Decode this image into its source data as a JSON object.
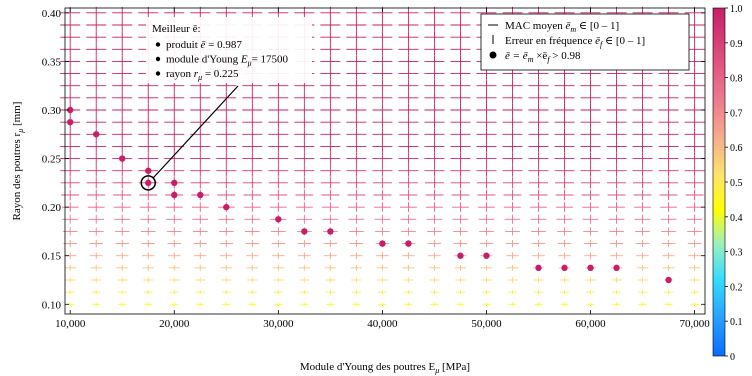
{
  "chart_data": {
    "type": "scatter",
    "title": "",
    "xlabel": "Module d'Young des poutres E",
    "xlabel_sub": "μ",
    "xlabel_unit": " [MPa]",
    "ylabel": "Rayon des poutres r",
    "ylabel_sub": "μ",
    "ylabel_unit": " [mm]",
    "xlim": [
      9500,
      71000
    ],
    "ylim": [
      0.09,
      0.405
    ],
    "x_ticks": [
      10000,
      20000,
      30000,
      40000,
      50000,
      60000,
      70000
    ],
    "x_tick_labels": [
      "10,000",
      "20,000",
      "30,000",
      "40,000",
      "50,000",
      "60,000",
      "70,000"
    ],
    "y_ticks": [
      0.1,
      0.15,
      0.2,
      0.25,
      0.3,
      0.35,
      0.4
    ],
    "y_tick_labels": [
      "0.10",
      "0.15",
      "0.20",
      "0.25",
      "0.30",
      "0.35",
      "0.40"
    ],
    "grid_x": {
      "start": 10000,
      "step": 2500,
      "count": 25
    },
    "grid_y": {
      "start": 0.1,
      "step": 0.0125,
      "count": 25
    },
    "colorbar": {
      "range": [
        0,
        1
      ],
      "ticks": [
        "0",
        "0.1",
        "0.2",
        "0.3",
        "0.4",
        "0.5",
        "0.6",
        "0.7",
        "0.8",
        "0.9",
        "1.0"
      ],
      "colors": [
        "#0a6cff",
        "#27a0ff",
        "#2fd7ff",
        "#8cf2d0",
        "#ffff00",
        "#ffe060",
        "#f7a98a",
        "#ef7f90",
        "#e85b8a",
        "#d93a7a",
        "#c81e6a"
      ]
    },
    "legend": {
      "position": "top-right",
      "entries": [
        {
          "marker": "hline",
          "text": "MAC moyen ",
          "math": "ē",
          "sub": "m",
          "tail": " ∈ [0 – 1]"
        },
        {
          "marker": "vline",
          "text": "Erreur en fréquence ",
          "math": "ē",
          "sub": "f",
          "tail": " ∈ [0 – 1]"
        },
        {
          "marker": "dot",
          "text": "",
          "math": "ē = ē",
          "sub": "m",
          "tail": " ×ē",
          "sub2": "f",
          "tail2": " > 0.98"
        }
      ]
    },
    "best": {
      "x": 17500,
      "y": 0.225,
      "title": "Meilleur ē:",
      "lines": [
        {
          "label": "produit ",
          "math": "ē",
          "value": " = 0.987"
        },
        {
          "label": "module d'Young ",
          "math": "E",
          "sub": "μ",
          "value": "= 17500"
        },
        {
          "label": "rayon ",
          "math": "r",
          "sub": "μ",
          "value": " = 0.225"
        }
      ]
    },
    "highlight_points": [
      {
        "x": 10000,
        "y": 0.3
      },
      {
        "x": 10000,
        "y": 0.2875
      },
      {
        "x": 12500,
        "y": 0.275
      },
      {
        "x": 15000,
        "y": 0.25
      },
      {
        "x": 17500,
        "y": 0.2375
      },
      {
        "x": 17500,
        "y": 0.225
      },
      {
        "x": 20000,
        "y": 0.225
      },
      {
        "x": 20000,
        "y": 0.2125
      },
      {
        "x": 22500,
        "y": 0.2125
      },
      {
        "x": 25000,
        "y": 0.2
      },
      {
        "x": 30000,
        "y": 0.1875
      },
      {
        "x": 32500,
        "y": 0.175
      },
      {
        "x": 35000,
        "y": 0.175
      },
      {
        "x": 40000,
        "y": 0.1625
      },
      {
        "x": 42500,
        "y": 0.1625
      },
      {
        "x": 47500,
        "y": 0.15
      },
      {
        "x": 50000,
        "y": 0.15
      },
      {
        "x": 55000,
        "y": 0.1375
      },
      {
        "x": 57500,
        "y": 0.1375
      },
      {
        "x": 60000,
        "y": 0.1375
      },
      {
        "x": 62500,
        "y": 0.1375
      },
      {
        "x": 67500,
        "y": 0.125
      }
    ]
  }
}
